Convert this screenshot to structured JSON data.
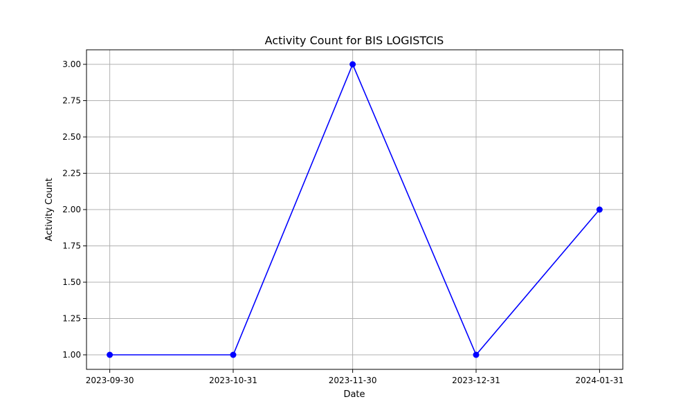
{
  "chart_data": {
    "type": "line",
    "title": "Activity Count for BIS LOGISTCIS",
    "xlabel": "Date",
    "ylabel": "Activity Count",
    "x": [
      "2023-09-30",
      "2023-10-31",
      "2023-11-30",
      "2023-12-31",
      "2024-01-31"
    ],
    "series": [
      {
        "values": [
          1,
          1,
          3,
          1,
          2
        ]
      }
    ],
    "ylim": [
      0.9,
      3.1
    ],
    "yticks": [
      1.0,
      1.25,
      1.5,
      1.75,
      2.0,
      2.25,
      2.5,
      2.75,
      3.0
    ],
    "ytick_labels": [
      "1.00",
      "1.25",
      "1.50",
      "1.75",
      "2.00",
      "2.25",
      "2.50",
      "2.75",
      "3.00"
    ],
    "grid": true,
    "line_color": "#0000ff",
    "marker": "circle"
  }
}
